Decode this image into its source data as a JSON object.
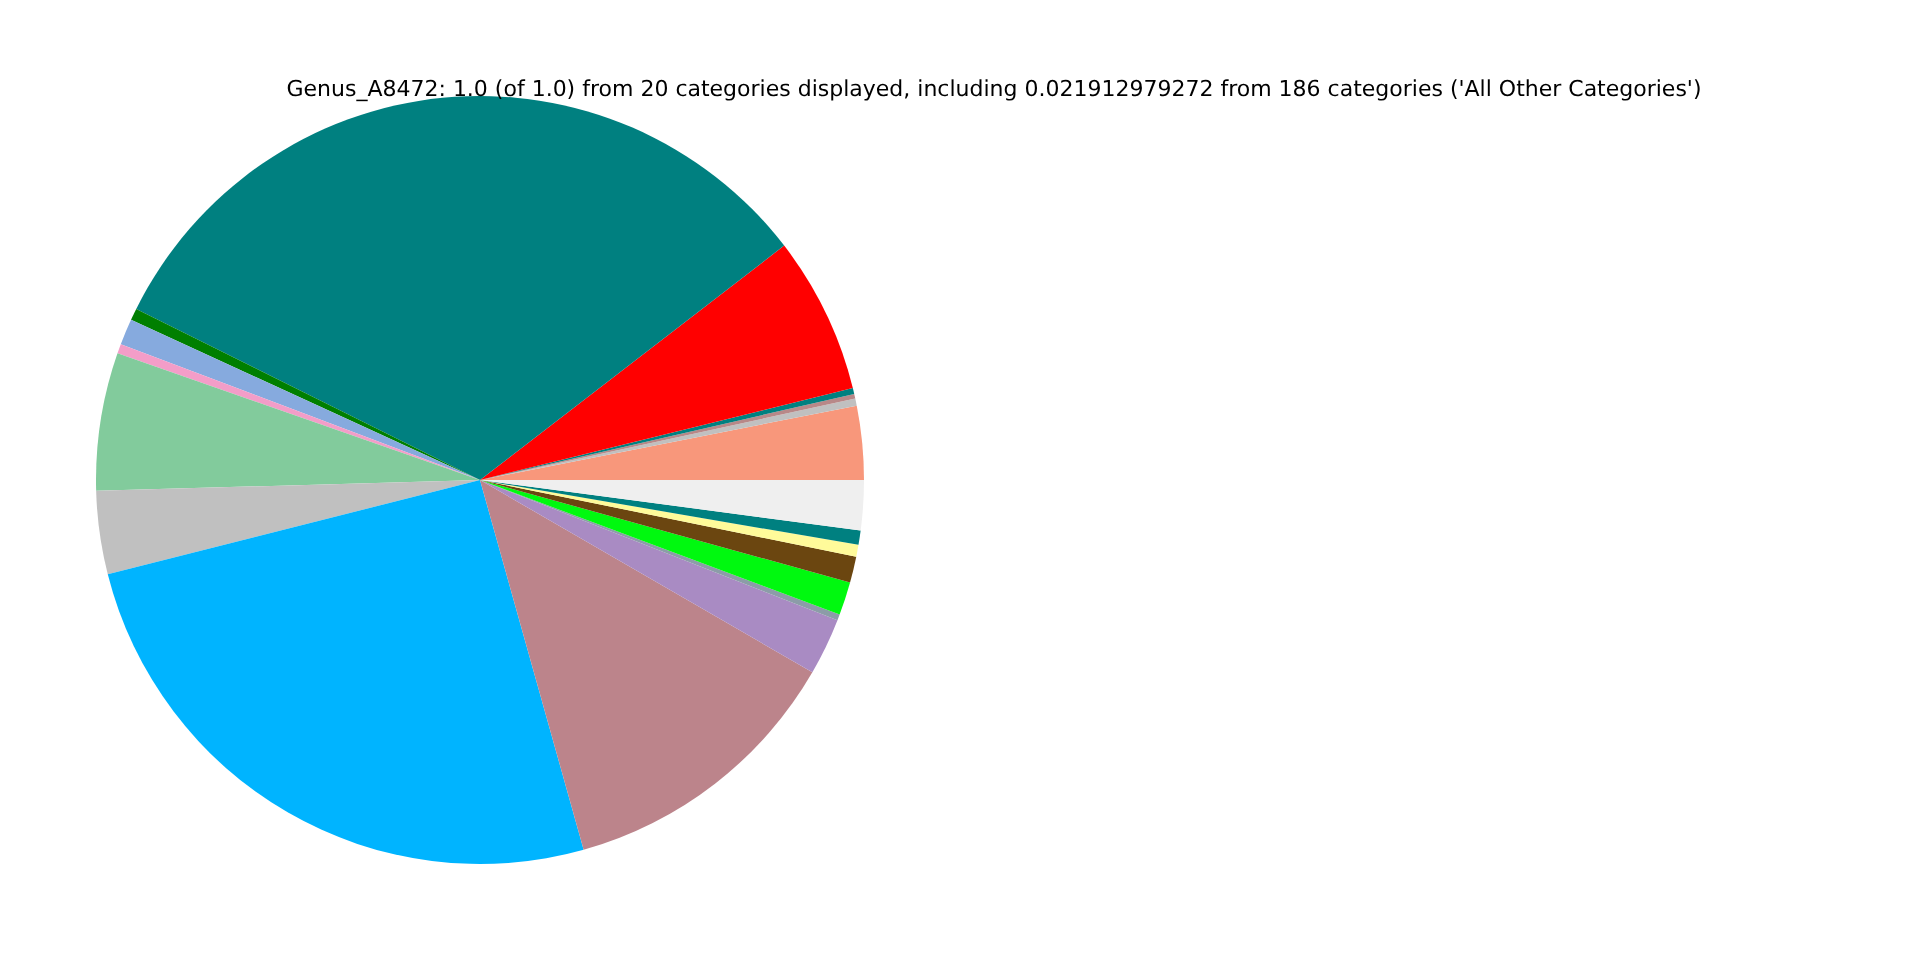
{
  "chart_data": {
    "type": "pie",
    "title": "Genus_A8472: 1.0 (of 1.0) from 20 categories displayed, including 0.021912979272 from 186 categories ('All Other Categories')",
    "categories": [
      null,
      null,
      null,
      null,
      null,
      null,
      null,
      null,
      null,
      null,
      null,
      null,
      null,
      null,
      null,
      null,
      null,
      null,
      null,
      null
    ],
    "values": [
      3.1,
      0.3,
      0.2,
      0.25,
      6.6,
      32.2,
      0.5,
      1.1,
      0.4,
      5.8,
      3.5,
      25.4,
      12.3,
      2.4,
      0.25,
      1.4,
      1.1,
      0.5,
      0.6,
      2.1
    ],
    "colors": [
      "#f8977b",
      "#c0c0c0",
      "#b88888",
      "#008080",
      "#ff0000",
      "#008080",
      "#007f00",
      "#86aade",
      "#f39dc8",
      "#82cb9c",
      "#c0c0c0",
      "#00b4ff",
      "#bc848b",
      "#a98bc3",
      "#8c9ca8",
      "#00f90f",
      "#6b4610",
      "#fffb9a",
      "#008080",
      "#efefef"
    ]
  }
}
